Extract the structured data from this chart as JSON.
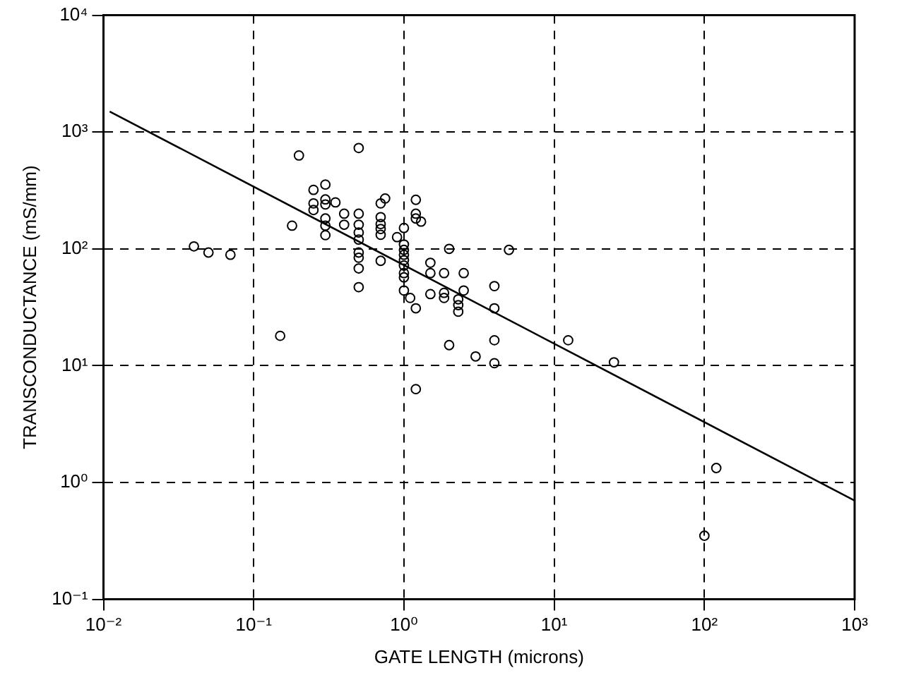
{
  "chart_data": {
    "type": "scatter",
    "xlabel": "GATE LENGTH (microns)",
    "ylabel": "TRANSCONDUCTANCE (mS/mm)",
    "log": "xy",
    "grid": true,
    "legend": false,
    "xlim": [
      0.01,
      1000
    ],
    "ylim": [
      0.1,
      10000
    ],
    "xticks": [
      {
        "value": 0.01,
        "label": "10⁻²"
      },
      {
        "value": 0.1,
        "label": "10⁻¹"
      },
      {
        "value": 1,
        "label": "10⁰"
      },
      {
        "value": 10,
        "label": "10¹"
      },
      {
        "value": 100,
        "label": "10²"
      },
      {
        "value": 1000,
        "label": "10³"
      }
    ],
    "yticks": [
      {
        "value": 0.1,
        "label": "10⁻¹"
      },
      {
        "value": 1,
        "label": "10⁰"
      },
      {
        "value": 10,
        "label": "10¹"
      },
      {
        "value": 100,
        "label": "10²"
      },
      {
        "value": 1000,
        "label": "10³"
      },
      {
        "value": 10000,
        "label": "10⁴"
      }
    ],
    "series": [
      {
        "type": "scatter",
        "color": "#000000",
        "marker": "circle",
        "x": [
          0.04,
          0.05,
          0.07,
          0.15,
          0.18,
          0.2,
          0.25,
          0.25,
          0.25,
          0.3,
          0.3,
          0.3,
          0.3,
          0.3,
          0.3,
          0.35,
          0.4,
          0.4,
          0.5,
          0.5,
          0.5,
          0.5,
          0.5,
          0.5,
          0.5,
          0.5,
          0.5,
          0.7,
          0.7,
          0.7,
          0.7,
          0.7,
          0.7,
          0.75,
          0.9,
          1,
          1,
          1,
          1,
          1,
          1,
          1,
          1,
          1,
          1.1,
          1.2,
          1.2,
          1.2,
          1.3,
          1.2,
          1.2,
          1.5,
          1.5,
          1.5,
          1.85,
          1.85,
          1.85,
          2,
          2,
          2.3,
          2.3,
          2.3,
          2.5,
          2.5,
          3,
          4,
          4,
          4,
          4,
          5,
          12.4,
          25,
          100,
          120
        ],
        "values": [
          105,
          93,
          89,
          18,
          158,
          630,
          320,
          245,
          215,
          355,
          265,
          240,
          182,
          158,
          131,
          250,
          200,
          161,
          730,
          200,
          161,
          138,
          120,
          93,
          84,
          68,
          47,
          245,
          187,
          163,
          148,
          132,
          79,
          270,
          126,
          151,
          109,
          98,
          89,
          80,
          72,
          62,
          57,
          44,
          38,
          263,
          200,
          182,
          171,
          31,
          6.3,
          76,
          62,
          41,
          62,
          42,
          38,
          100,
          15,
          37,
          33,
          29,
          62,
          44,
          12,
          48,
          31,
          16.5,
          10.5,
          98,
          16.5,
          10.7,
          0.35,
          1.33
        ]
      },
      {
        "type": "line",
        "color": "#000000",
        "marker": "none",
        "line_style": "solid",
        "x": [
          0.011,
          1000
        ],
        "values": [
          1500,
          0.7
        ]
      }
    ]
  }
}
